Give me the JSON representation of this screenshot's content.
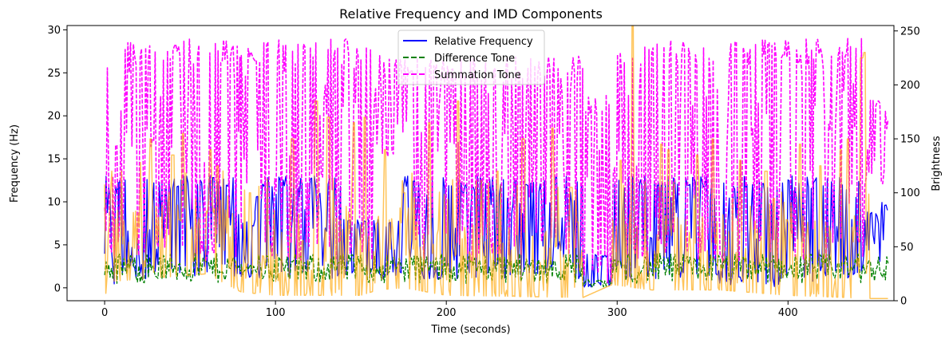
{
  "chart_data": {
    "type": "line",
    "title": "Relative Frequency and IMD Components",
    "xlabel": "Time (seconds)",
    "ylabel": "Frequency (Hz)",
    "ylabel_right": "Brightness",
    "xlim": [
      -22,
      462
    ],
    "ylim": [
      -1.5,
      30.5
    ],
    "ylim_right": [
      0,
      255
    ],
    "x_ticks": [
      0,
      100,
      200,
      300,
      400
    ],
    "x_tick_labels": [
      "0",
      "100",
      "200",
      "300",
      "400"
    ],
    "y_ticks": [
      0,
      5,
      10,
      15,
      20,
      25,
      30
    ],
    "y_tick_labels": [
      "0",
      "5",
      "10",
      "15",
      "20",
      "25",
      "30"
    ],
    "y_right_ticks": [
      0,
      50,
      100,
      150,
      200,
      250
    ],
    "y_right_tick_labels": [
      "0",
      "50",
      "100",
      "150",
      "200",
      "250"
    ],
    "legend_position": "top-center",
    "series": [
      {
        "name": "Relative Frequency",
        "color": "#0000ff",
        "style": "solid",
        "axis": "left",
        "description_levels": [
          0,
          1.5,
          3,
          5,
          6.5,
          8,
          10,
          12,
          13
        ],
        "segments": [
          {
            "x": [
              0,
              8
            ],
            "range": [
              0,
              13
            ]
          },
          {
            "x": [
              8,
              80
            ],
            "range": [
              1,
              13
            ]
          },
          {
            "x": [
              80,
              88
            ],
            "range": [
              1,
              8
            ]
          },
          {
            "x": [
              88,
              90
            ],
            "range": [
              7,
              11
            ]
          },
          {
            "x": [
              90,
              140
            ],
            "range": [
              1,
              13
            ]
          },
          {
            "x": [
              140,
              175
            ],
            "range": [
              1,
              8
            ]
          },
          {
            "x": [
              175,
              280
            ],
            "range": [
              1,
              13
            ]
          },
          {
            "x": [
              280,
              297
            ],
            "range": [
              0,
              4
            ]
          },
          {
            "x": [
              297,
              360
            ],
            "range": [
              1,
              13
            ]
          },
          {
            "x": [
              360,
              415
            ],
            "range": [
              0,
              13
            ]
          },
          {
            "x": [
              415,
              445
            ],
            "range": [
              1,
              13
            ]
          },
          {
            "x": [
              445,
              455
            ],
            "range": [
              3,
              9
            ]
          },
          {
            "x": [
              455,
              459
            ],
            "range": [
              5,
              10
            ]
          }
        ]
      },
      {
        "name": "Difference Tone",
        "color": "#008000",
        "style": "dashed",
        "axis": "left",
        "segments": [
          {
            "x": [
              0,
              80
            ],
            "range": [
              0.5,
              4
            ]
          },
          {
            "x": [
              80,
              90
            ],
            "range": [
              1.5,
              3
            ]
          },
          {
            "x": [
              90,
              280
            ],
            "range": [
              0.5,
              4
            ]
          },
          {
            "x": [
              280,
              297
            ],
            "range": [
              0,
              1
            ]
          },
          {
            "x": [
              297,
              459
            ],
            "range": [
              0.5,
              4
            ]
          }
        ]
      },
      {
        "name": "Summation Tone",
        "color": "#ff00ff",
        "style": "dashed",
        "axis": "left",
        "segments": [
          {
            "x": [
              0,
              80
            ],
            "range": [
              3,
              29
            ]
          },
          {
            "x": [
              80,
              90
            ],
            "range": [
              12,
              28
            ]
          },
          {
            "x": [
              90,
              157
            ],
            "range": [
              3,
              29
            ]
          },
          {
            "x": [
              157,
              175
            ],
            "range": [
              15,
              27
            ]
          },
          {
            "x": [
              175,
              280
            ],
            "range": [
              3,
              27
            ]
          },
          {
            "x": [
              280,
              297
            ],
            "range": [
              0,
              23
            ]
          },
          {
            "x": [
              297,
              415
            ],
            "range": [
              3,
              29
            ]
          },
          {
            "x": [
              415,
              445
            ],
            "range": [
              3,
              29
            ]
          },
          {
            "x": [
              445,
              459
            ],
            "range": [
              12,
              22
            ]
          }
        ]
      },
      {
        "name": "Brightness",
        "color": "#ffa500",
        "style": "solid",
        "axis": "right",
        "opacity": 0.65,
        "baseline": [
          [
            0,
            5
          ],
          [
            5,
            18
          ],
          [
            60,
            25
          ],
          [
            80,
            8
          ],
          [
            100,
            5
          ],
          [
            150,
            5
          ],
          [
            160,
            10
          ],
          [
            175,
            12
          ],
          [
            200,
            5
          ],
          [
            280,
            3
          ],
          [
            297,
            15
          ],
          [
            320,
            10
          ],
          [
            360,
            10
          ],
          [
            400,
            5
          ],
          [
            450,
            2
          ],
          [
            459,
            2
          ]
        ],
        "peaks": [
          [
            27,
            150
          ],
          [
            40,
            135
          ],
          [
            46,
            155
          ],
          [
            62,
            140
          ],
          [
            66,
            125
          ],
          [
            85,
            100
          ],
          [
            110,
            150
          ],
          [
            124,
            185
          ],
          [
            131,
            170
          ],
          [
            146,
            165
          ],
          [
            152,
            170
          ],
          [
            164,
            140
          ],
          [
            175,
            100
          ],
          [
            190,
            165
          ],
          [
            207,
            185
          ],
          [
            230,
            120
          ],
          [
            245,
            150
          ],
          [
            262,
            160
          ],
          [
            273,
            105
          ],
          [
            302,
            130
          ],
          [
            309,
            255
          ],
          [
            326,
            145
          ],
          [
            330,
            140
          ],
          [
            347,
            135
          ],
          [
            356,
            150
          ],
          [
            372,
            130
          ],
          [
            387,
            120
          ],
          [
            407,
            145
          ],
          [
            419,
            125
          ],
          [
            431,
            140
          ],
          [
            435,
            150
          ],
          [
            443,
            225
          ],
          [
            445,
            230
          ]
        ]
      }
    ]
  }
}
